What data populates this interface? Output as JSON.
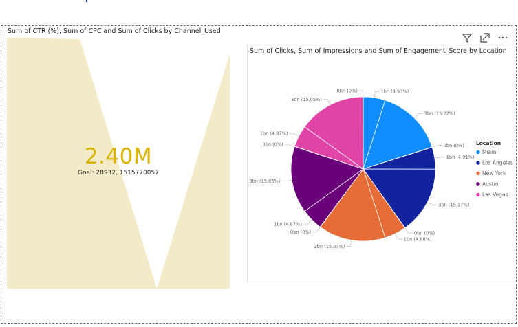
{
  "gauge_visual": {
    "title": "Sum of CTR (%), Sum of CPC and Sum of Clicks by Channel_Used",
    "value_label": "2.40M",
    "goal_label": "Goal: 28932, 1515770057",
    "fill_color": "#f3ebc8"
  },
  "header_icons": [
    "filter-icon",
    "focus-mode-icon",
    "more-options-icon"
  ],
  "chart_data": {
    "type": "pie",
    "title": "Sum of Clicks, Sum of Impressions and Sum of Engagement_Score by Location",
    "legend_title": "Location",
    "legend_position": "right",
    "legend": [
      {
        "name": "Miami",
        "color": "#118dff"
      },
      {
        "name": "Los Angeles",
        "color": "#12239e"
      },
      {
        "name": "New York",
        "color": "#e66c37"
      },
      {
        "name": "Austin",
        "color": "#6b007b"
      },
      {
        "name": "Las Vegas",
        "color": "#e044a7"
      }
    ],
    "slices": [
      {
        "label": "1bn (4.93%)",
        "percent": 4.93,
        "color": "#118dff"
      },
      {
        "label": "3bn (15.22%)",
        "percent": 15.22,
        "color": "#118dff"
      },
      {
        "label": "0bn (0%)",
        "percent": 0.05,
        "color": "#118dff"
      },
      {
        "label": "1bn (4.91%)",
        "percent": 4.91,
        "color": "#12239e"
      },
      {
        "label": "3bn (15.17%)",
        "percent": 15.17,
        "color": "#12239e"
      },
      {
        "label": "0bn (0%)",
        "percent": 0.05,
        "color": "#12239e"
      },
      {
        "label": "1bn (4.88%)",
        "percent": 4.88,
        "color": "#e66c37"
      },
      {
        "label": "3bn (15.07%)",
        "percent": 15.07,
        "color": "#e66c37"
      },
      {
        "label": "0bn (0%)",
        "percent": 0.05,
        "color": "#e66c37"
      },
      {
        "label": "1bn (4.87%)",
        "percent": 4.87,
        "color": "#6b007b"
      },
      {
        "label": "3bn (15.05%)",
        "percent": 15.05,
        "color": "#6b007b"
      },
      {
        "label": "0bn (0%)",
        "percent": 0.05,
        "color": "#6b007b"
      },
      {
        "label": "1bn (4.87%)",
        "percent": 4.87,
        "color": "#e044a7"
      },
      {
        "label": "3bn (15.05%)",
        "percent": 15.05,
        "color": "#e044a7"
      },
      {
        "label": "0bn (0%)",
        "percent": 0.05,
        "color": "#e044a7"
      }
    ]
  }
}
